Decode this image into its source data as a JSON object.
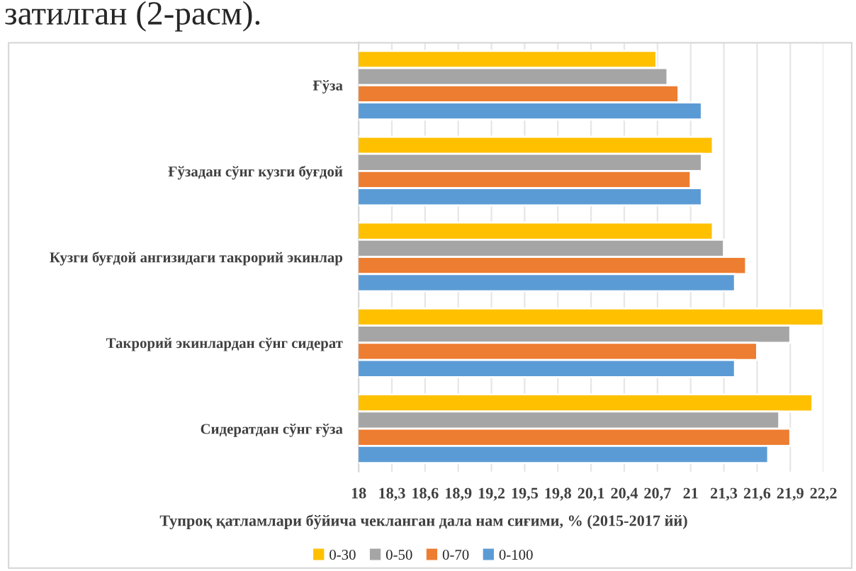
{
  "chart_data": {
    "type": "bar",
    "orientation": "horizontal",
    "categories": [
      "Ғўза",
      "Ғўзадан сўнг кузги буғдой",
      "Кузги буғдой ангизидаги такрорий экинлар",
      "Такрорий экинлардан сўнг сидерат",
      "Сидератдан сўнг ғўза"
    ],
    "series": [
      {
        "name": "0-30",
        "color": "#ffc000",
        "values": [
          20.69,
          21.2,
          21.2,
          22.2,
          22.1
        ]
      },
      {
        "name": "0-50",
        "color": "#a5a5a5",
        "values": [
          20.79,
          21.1,
          21.3,
          21.9,
          21.8
        ]
      },
      {
        "name": "0-70",
        "color": "#ed7d31",
        "values": [
          20.89,
          21.0,
          21.5,
          21.6,
          21.9
        ]
      },
      {
        "name": "0-100",
        "color": "#5b9bd5",
        "values": [
          21.1,
          21.1,
          21.4,
          21.4,
          21.7
        ]
      }
    ],
    "xlabel": "Тупроқ қатламлари бўйича чекланган дала нам сиғими, % (2015-2017 йй)",
    "xlim": [
      18,
      22.2
    ],
    "xticks": [
      18,
      {
        "value": 18.3,
        "label": "18,3"
      },
      {
        "value": 18.6,
        "label": "18,6"
      },
      {
        "value": 18.9,
        "label": "18,9"
      },
      {
        "value": 19.2,
        "label": "19,2"
      },
      {
        "value": 19.5,
        "label": "19,5"
      },
      {
        "value": 19.8,
        "label": "19,8"
      },
      {
        "value": 20.1,
        "label": "20,1"
      },
      {
        "value": 20.4,
        "label": "20,4"
      },
      {
        "value": 20.7,
        "label": "20,7"
      },
      21,
      {
        "value": 21.3,
        "label": "21,3"
      },
      {
        "value": 21.6,
        "label": "21,6"
      },
      {
        "value": 21.9,
        "label": "21,9"
      },
      {
        "value": 22.2,
        "label": "22,2"
      }
    ],
    "grid": "x",
    "legend": "bottom",
    "annotations": [
      "затилган (2-расм)."
    ]
  }
}
